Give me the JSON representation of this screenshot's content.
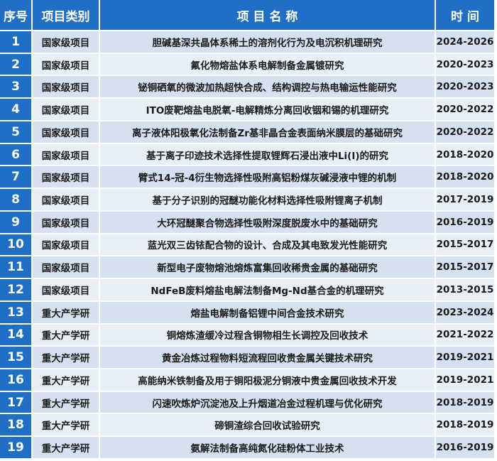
{
  "table": {
    "header": [
      "序号",
      "项目类别",
      "项 目 名 称",
      "时 间"
    ],
    "rows": [
      [
        "1",
        "国家级项目",
        "胆碱基深共晶体系稀土的溶剂化行为及电沉积机理研究",
        "2024-2026"
      ],
      [
        "2",
        "国家级项目",
        "氟化物熔盐体系电解制备金属镀研究",
        "2020-2023"
      ],
      [
        "3",
        "国家级项目",
        "铋铜硒氧的微波加热超快合成、结构调控与热电输运性能研究",
        "2020-2023"
      ],
      [
        "4",
        "国家级项目",
        "ITO废靶熔盐电脱氧-电解精炼分离回收铟和锡的机理研究",
        "2020-2022"
      ],
      [
        "5",
        "国家级项目",
        "离子液体阳极氧化法制备Zr基非晶合金表面纳米膜层的基础研究",
        "2020-2022"
      ],
      [
        "6",
        "国家级项目",
        "基于离子印迹技术选择性提取锂辉石浸出液中Li(I)的研究",
        "2018-2020"
      ],
      [
        "7",
        "国家级项目",
        "臂式14-冠-4衍生物选择性吸附高铝粉煤灰碱浸液中锂的机制",
        "2018-2020"
      ],
      [
        "8",
        "国家级项目",
        "基于分子识别的冠醚功能化材料选择性吸附锂离子机制",
        "2017-2019"
      ],
      [
        "9",
        "国家级项目",
        "大环冠醚聚合物选择性吸附深度脱废水中的基础研究",
        "2016-2019"
      ],
      [
        "10",
        "国家级项目",
        "蓝光双三齿铱配合物的设计、合成及其电致发光性能研究",
        "2015-2017"
      ],
      [
        "11",
        "国家级项目",
        "新型电子废物熔池熔炼富集回收稀贵金属的基础研究",
        "2015-2017"
      ],
      [
        "12",
        "国家级项目",
        "NdFeB废料熔盐电解法制备Mg-Nd基合金的机理研究",
        "2013-2015"
      ],
      [
        "13",
        "重大产学研",
        "熔盐电解制备铝锂中间合金技术研究",
        "2023-2024"
      ],
      [
        "14",
        "重大产学研",
        "铜熔炼渣缓冷过程含铜物相生长调控及回收技术",
        "2021-2022"
      ],
      [
        "15",
        "重大产学研",
        "黄金冶炼过程物料短流程回收贵金属关键技术研究",
        "2019-2021"
      ],
      [
        "16",
        "重大产学研",
        "高能纳米铁制备及用于铜阳极泥分铜液中贵金属回收技术开发",
        "2019-2021"
      ],
      [
        "17",
        "重大产学研",
        "闪速吹炼炉沉淀池及上升烟道冶金过程机理与优化研究",
        "2018-2019"
      ],
      [
        "18",
        "重大产学研",
        "碲铜渣综合回收试验研究",
        "2018-2019"
      ],
      [
        "19",
        "重大产学研",
        "氨解法制备高纯氮化硅粉体工业技术",
        "2016-2019"
      ]
    ]
  }
}
